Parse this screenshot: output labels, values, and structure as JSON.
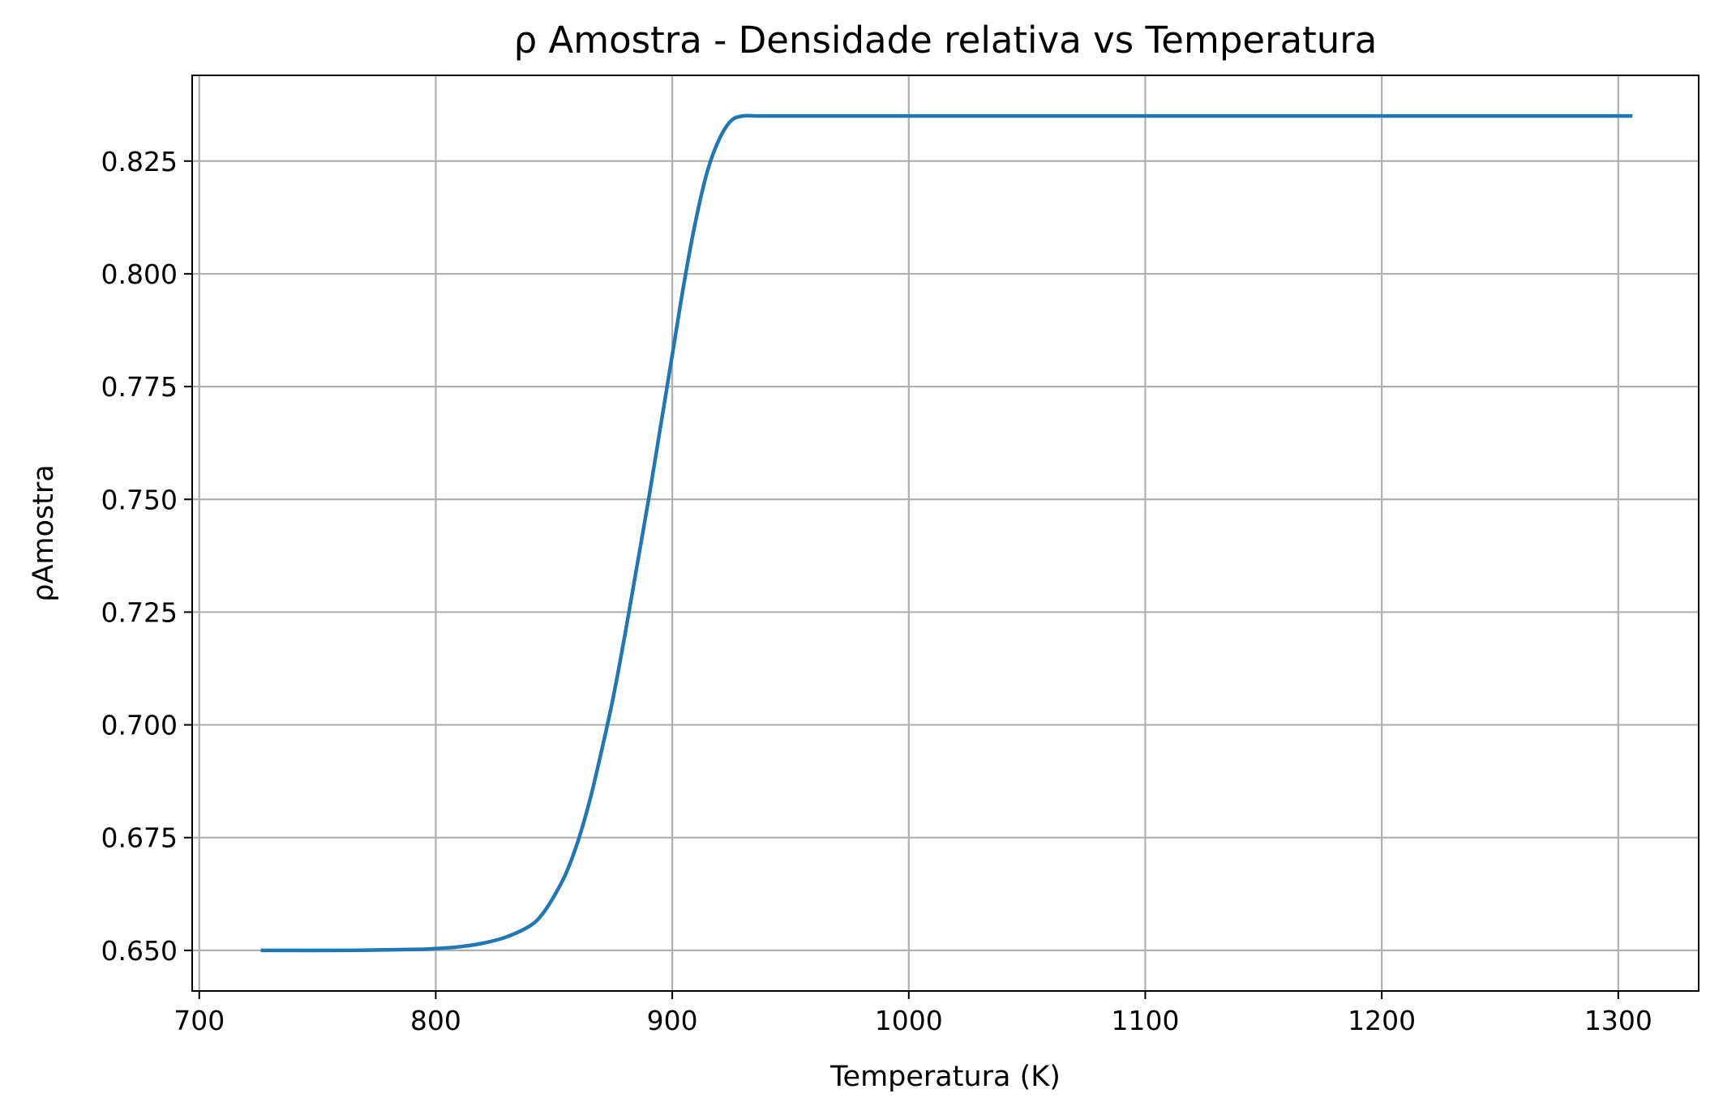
{
  "chart_data": {
    "type": "line",
    "title": "ρ Amostra - Densidade relativa vs Temperatura",
    "xlabel": "Temperatura (K)",
    "ylabel": "ρAmostra",
    "xlim": [
      697,
      1334
    ],
    "ylim": [
      0.641,
      0.844
    ],
    "xticks": [
      700,
      800,
      900,
      1000,
      1100,
      1200,
      1300
    ],
    "xtick_labels": [
      "700",
      "800",
      "900",
      "1000",
      "1100",
      "1200",
      "1300"
    ],
    "yticks": [
      0.65,
      0.675,
      0.7,
      0.725,
      0.75,
      0.775,
      0.8,
      0.825
    ],
    "ytick_labels": [
      "0.650",
      "0.675",
      "0.700",
      "0.725",
      "0.750",
      "0.775",
      "0.800",
      "0.825"
    ],
    "grid": true,
    "series": [
      {
        "color": "#1f77b4",
        "x": [
          726,
          760,
          790,
          800,
          810,
          820,
          830,
          840,
          845,
          850,
          855,
          860,
          865,
          870,
          875,
          880,
          885,
          890,
          895,
          900,
          905,
          910,
          915,
          920,
          925,
          930,
          935,
          940,
          960,
          1000,
          1100,
          1200,
          1306
        ],
        "y": [
          0.65,
          0.65,
          0.6502,
          0.6504,
          0.6508,
          0.6516,
          0.653,
          0.6555,
          0.658,
          0.662,
          0.667,
          0.674,
          0.683,
          0.694,
          0.706,
          0.72,
          0.735,
          0.75,
          0.766,
          0.782,
          0.798,
          0.812,
          0.823,
          0.83,
          0.834,
          0.835,
          0.835,
          0.835,
          0.835,
          0.835,
          0.835,
          0.835,
          0.835
        ]
      }
    ]
  }
}
